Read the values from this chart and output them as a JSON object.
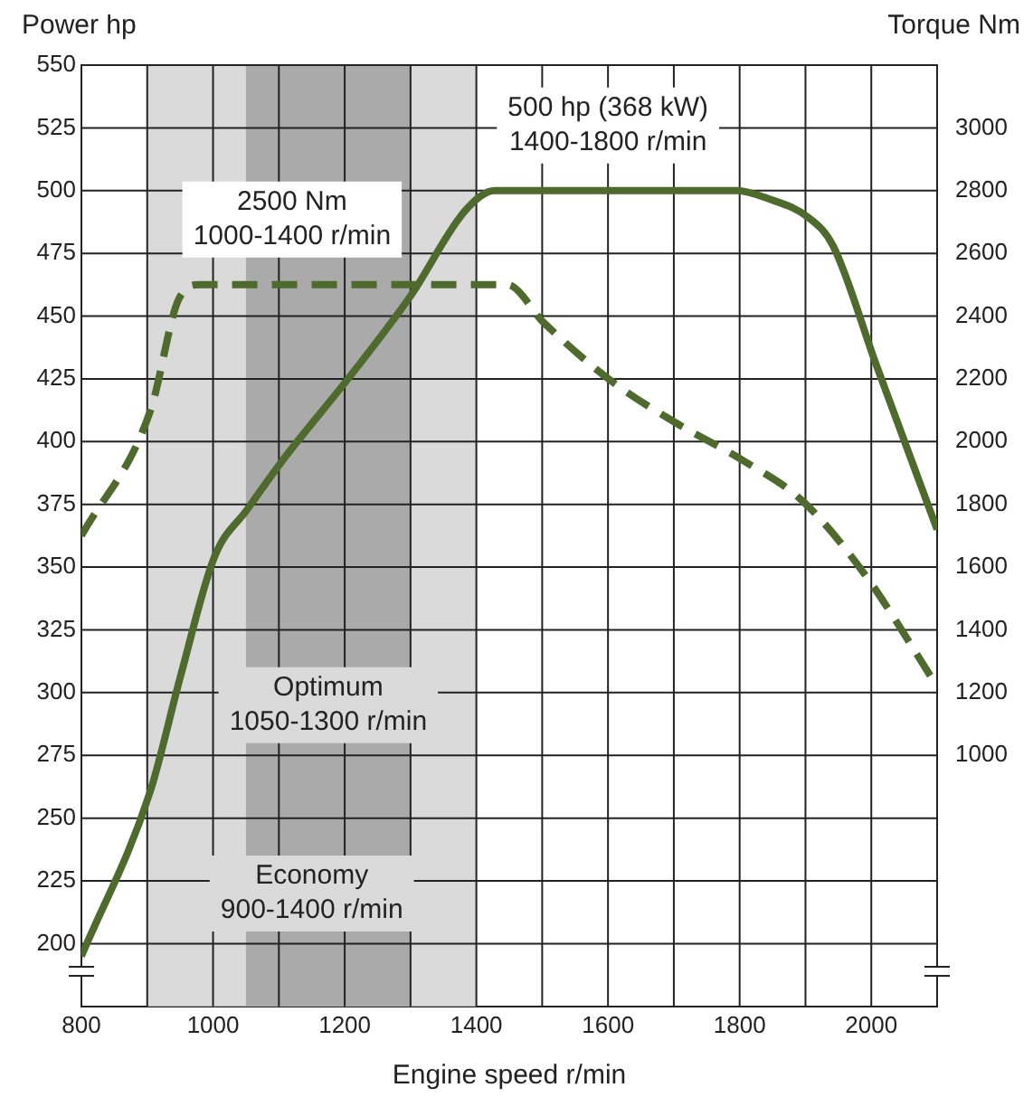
{
  "chart_data": {
    "type": "line",
    "xlabel": "Engine speed r/min",
    "ylabel": "Power hp",
    "y2label": "Torque Nm",
    "x": [
      800,
      905,
      951,
      1002,
      1052,
      1107,
      1208,
      1300,
      1383,
      1428,
      1796,
      1841,
      1906,
      1942,
      2007,
      2100
    ],
    "series": [
      {
        "color": "#4e6a2c",
        "line_style": "solid",
        "values": [
          195,
          261,
          307,
          354,
          373,
          393,
          426,
          458,
          492,
          500,
          500,
          497,
          489,
          478,
          431,
          365
        ]
      },
      {
        "color": "#4e6a2c",
        "line_style": "dashed",
        "axis": "y2",
        "x": [
          800,
          905,
          947,
          979,
          1447,
          1502,
          1607,
          1703,
          1805,
          1896,
          1989,
          2100
        ],
        "values": [
          1700,
          2100,
          2450,
          2500,
          2500,
          2380,
          2190,
          2060,
          1940,
          1810,
          1580,
          1220
        ]
      }
    ],
    "xlim": [
      800,
      2100
    ],
    "xticks": [
      800,
      {
        "value": 900,
        "label": null
      },
      1000,
      {
        "value": 1100,
        "label": null
      },
      1200,
      {
        "value": 1300,
        "label": null
      },
      1400,
      {
        "value": 1500,
        "label": null
      },
      1600,
      {
        "value": 1700,
        "label": null
      },
      1800,
      {
        "value": 1900,
        "label": null
      },
      2000,
      {
        "value": 2100,
        "label": null
      }
    ],
    "ylim": [
      175,
      550
    ],
    "yticks": [
      200,
      225,
      250,
      275,
      300,
      325,
      350,
      375,
      400,
      425,
      450,
      475,
      500,
      525,
      550
    ],
    "y2lim": [
      200,
      3200
    ],
    "y2ticks": [
      1000,
      1200,
      1400,
      1600,
      1800,
      2000,
      2200,
      2400,
      2600,
      2800,
      3000
    ],
    "bands": [
      {
        "axis": "x",
        "from": 900,
        "to": 1400,
        "label": "Economy\n900-1400 r/min",
        "color": "#dadada"
      },
      {
        "axis": "x",
        "from": 1050,
        "to": 1300,
        "label": "Optimum\n1050-1300 r/min",
        "color": "#a9aaa9"
      }
    ],
    "annotations": [
      {
        "text": "500 hp (368 kW)\n1400-1800 r/min",
        "x": 1600,
        "y": 500
      },
      {
        "text": "2500 Nm\n1000-1400 r/min",
        "x": 1120,
        "y": 462.5
      }
    ],
    "grid": true,
    "legend": false,
    "marker": "none"
  }
}
